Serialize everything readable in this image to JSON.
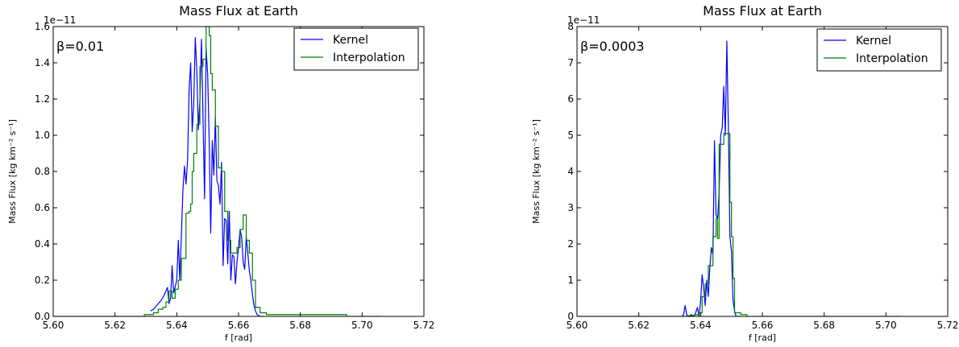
{
  "chart_data": [
    {
      "type": "line",
      "title": "Mass Flux at Earth",
      "xlabel": "f [rad]",
      "ylabel": "Mass Flux [kg km⁻² s⁻¹]",
      "y_scale_label": "1e−11",
      "annotation": "β=0.01",
      "xlim": [
        5.6,
        5.72
      ],
      "ylim": [
        0.0,
        1.6
      ],
      "x_ticks": [
        "5.60",
        "5.62",
        "5.64",
        "5.66",
        "5.68",
        "5.70",
        "5.72"
      ],
      "y_ticks": [
        "0.0",
        "0.2",
        "0.4",
        "0.6",
        "0.8",
        "1.0",
        "1.2",
        "1.4",
        "1.6"
      ],
      "grid": false,
      "legend_position": "top-right",
      "series": [
        {
          "name": "Kernel",
          "color": "#0000ff",
          "step": false,
          "points": [
            [
              5.6315,
              0.03
            ],
            [
              5.6325,
              0.04
            ],
            [
              5.6335,
              0.06
            ],
            [
              5.634,
              0.07
            ],
            [
              5.635,
              0.09
            ],
            [
              5.636,
              0.12
            ],
            [
              5.637,
              0.16
            ],
            [
              5.6375,
              0.07
            ],
            [
              5.638,
              0.1
            ],
            [
              5.6385,
              0.28
            ],
            [
              5.639,
              0.13
            ],
            [
              5.64,
              0.2
            ],
            [
              5.6405,
              0.42
            ],
            [
              5.641,
              0.2
            ],
            [
              5.642,
              0.7
            ],
            [
              5.6425,
              0.83
            ],
            [
              5.643,
              0.73
            ],
            [
              5.6435,
              0.86
            ],
            [
              5.644,
              1.25
            ],
            [
              5.6445,
              1.4
            ],
            [
              5.645,
              1.02
            ],
            [
              5.6455,
              1.18
            ],
            [
              5.646,
              1.54
            ],
            [
              5.6465,
              1.35
            ],
            [
              5.647,
              1.03
            ],
            [
              5.6475,
              1.2
            ],
            [
              5.648,
              1.53
            ],
            [
              5.6485,
              1.1
            ],
            [
              5.649,
              0.65
            ],
            [
              5.6495,
              1.48
            ],
            [
              5.65,
              1.34
            ],
            [
              5.6505,
              0.97
            ],
            [
              5.651,
              0.46
            ],
            [
              5.6515,
              0.97
            ],
            [
              5.652,
              0.78
            ],
            [
              5.6525,
              1.1
            ],
            [
              5.653,
              0.75
            ],
            [
              5.6535,
              0.72
            ],
            [
              5.654,
              0.62
            ],
            [
              5.6545,
              0.85
            ],
            [
              5.655,
              0.28
            ],
            [
              5.6555,
              0.54
            ],
            [
              5.656,
              0.53
            ],
            [
              5.6565,
              0.29
            ],
            [
              5.657,
              0.58
            ],
            [
              5.6575,
              0.2
            ],
            [
              5.658,
              0.34
            ],
            [
              5.6585,
              0.33
            ],
            [
              5.659,
              0.18
            ],
            [
              5.6595,
              0.3
            ],
            [
              5.66,
              0.38
            ],
            [
              5.6605,
              0.48
            ],
            [
              5.661,
              0.44
            ],
            [
              5.6615,
              0.3
            ],
            [
              5.662,
              0.26
            ],
            [
              5.6625,
              0.44
            ],
            [
              5.663,
              0.35
            ],
            [
              5.6635,
              0.25
            ],
            [
              5.664,
              0.2
            ],
            [
              5.6645,
              0.12
            ],
            [
              5.665,
              0.06
            ],
            [
              5.6655,
              0.03
            ],
            [
              5.666,
              0.01
            ],
            [
              5.667,
              0.0
            ],
            [
              5.668,
              0.0
            ]
          ]
        },
        {
          "name": "Interpolation",
          "color": "#008000",
          "step": true,
          "points": [
            [
              5.6,
              0.0
            ],
            [
              5.628,
              0.0
            ],
            [
              5.6295,
              0.01
            ],
            [
              5.6325,
              0.02
            ],
            [
              5.634,
              0.04
            ],
            [
              5.6355,
              0.05
            ],
            [
              5.6365,
              0.08
            ],
            [
              5.6375,
              0.14
            ],
            [
              5.6385,
              0.1
            ],
            [
              5.6395,
              0.15
            ],
            [
              5.6405,
              0.2
            ],
            [
              5.6415,
              0.32
            ],
            [
              5.643,
              0.57
            ],
            [
              5.644,
              0.58
            ],
            [
              5.6445,
              0.62
            ],
            [
              5.645,
              0.8
            ],
            [
              5.6455,
              0.9
            ],
            [
              5.6465,
              1.06
            ],
            [
              5.6475,
              1.38
            ],
            [
              5.6485,
              1.42
            ],
            [
              5.6495,
              1.6
            ],
            [
              5.6505,
              1.55
            ],
            [
              5.651,
              1.34
            ],
            [
              5.6515,
              1.25
            ],
            [
              5.6525,
              1.05
            ],
            [
              5.6535,
              0.82
            ],
            [
              5.6545,
              0.8
            ],
            [
              5.6555,
              0.58
            ],
            [
              5.6565,
              0.42
            ],
            [
              5.6575,
              0.35
            ],
            [
              5.6585,
              0.35
            ],
            [
              5.6595,
              0.38
            ],
            [
              5.6605,
              0.48
            ],
            [
              5.6615,
              0.56
            ],
            [
              5.6625,
              0.42
            ],
            [
              5.6635,
              0.35
            ],
            [
              5.6645,
              0.2
            ],
            [
              5.6655,
              0.05
            ],
            [
              5.667,
              0.02
            ],
            [
              5.669,
              0.01
            ],
            [
              5.695,
              0.0
            ],
            [
              5.706,
              0.0
            ]
          ]
        }
      ]
    },
    {
      "type": "line",
      "title": "Mass Flux at Earth",
      "xlabel": "f [rad]",
      "ylabel": "Mass Flux [kg km⁻² s⁻¹]",
      "y_scale_label": "1e−11",
      "annotation": "β=0.0003",
      "xlim": [
        5.6,
        5.72
      ],
      "ylim": [
        0,
        8
      ],
      "x_ticks": [
        "5.60",
        "5.62",
        "5.64",
        "5.66",
        "5.68",
        "5.70",
        "5.72"
      ],
      "y_ticks": [
        "0",
        "1",
        "2",
        "3",
        "4",
        "5",
        "6",
        "7",
        "8"
      ],
      "grid": false,
      "legend_position": "top-right",
      "series": [
        {
          "name": "Kernel",
          "color": "#0000ff",
          "step": false,
          "points": [
            [
              5.634,
              0.0
            ],
            [
              5.6345,
              0.05
            ],
            [
              5.635,
              0.3
            ],
            [
              5.6355,
              0.05
            ],
            [
              5.636,
              0.0
            ],
            [
              5.637,
              0.05
            ],
            [
              5.638,
              0.0
            ],
            [
              5.639,
              0.25
            ],
            [
              5.6395,
              0.0
            ],
            [
              5.64,
              0.4
            ],
            [
              5.6405,
              1.15
            ],
            [
              5.641,
              0.8
            ],
            [
              5.6415,
              0.3
            ],
            [
              5.642,
              1.0
            ],
            [
              5.6425,
              0.55
            ],
            [
              5.643,
              1.35
            ],
            [
              5.6435,
              1.9
            ],
            [
              5.644,
              1.7
            ],
            [
              5.6445,
              4.85
            ],
            [
              5.645,
              2.8
            ],
            [
              5.6455,
              2.7
            ],
            [
              5.646,
              3.4
            ],
            [
              5.6465,
              5.0
            ],
            [
              5.647,
              5.2
            ],
            [
              5.6475,
              6.35
            ],
            [
              5.648,
              5.0
            ],
            [
              5.6485,
              7.6
            ],
            [
              5.649,
              5.2
            ],
            [
              5.6495,
              2.2
            ],
            [
              5.65,
              1.8
            ],
            [
              5.6505,
              0.45
            ],
            [
              5.651,
              0.15
            ],
            [
              5.6515,
              0.0
            ],
            [
              5.653,
              0.0
            ]
          ]
        },
        {
          "name": "Interpolation",
          "color": "#008000",
          "step": true,
          "points": [
            [
              5.6,
              0.0
            ],
            [
              5.63,
              0.0
            ],
            [
              5.636,
              0.02
            ],
            [
              5.638,
              0.05
            ],
            [
              5.6395,
              0.1
            ],
            [
              5.6405,
              0.55
            ],
            [
              5.6415,
              0.9
            ],
            [
              5.6425,
              1.4
            ],
            [
              5.644,
              2.2
            ],
            [
              5.645,
              2.7
            ],
            [
              5.6455,
              2.15
            ],
            [
              5.646,
              4.75
            ],
            [
              5.6475,
              5.05
            ],
            [
              5.6495,
              3.15
            ],
            [
              5.65,
              2.2
            ],
            [
              5.6505,
              1.05
            ],
            [
              5.651,
              0.1
            ],
            [
              5.653,
              0.05
            ],
            [
              5.655,
              0.0
            ],
            [
              5.705,
              0.0
            ]
          ]
        }
      ]
    }
  ]
}
